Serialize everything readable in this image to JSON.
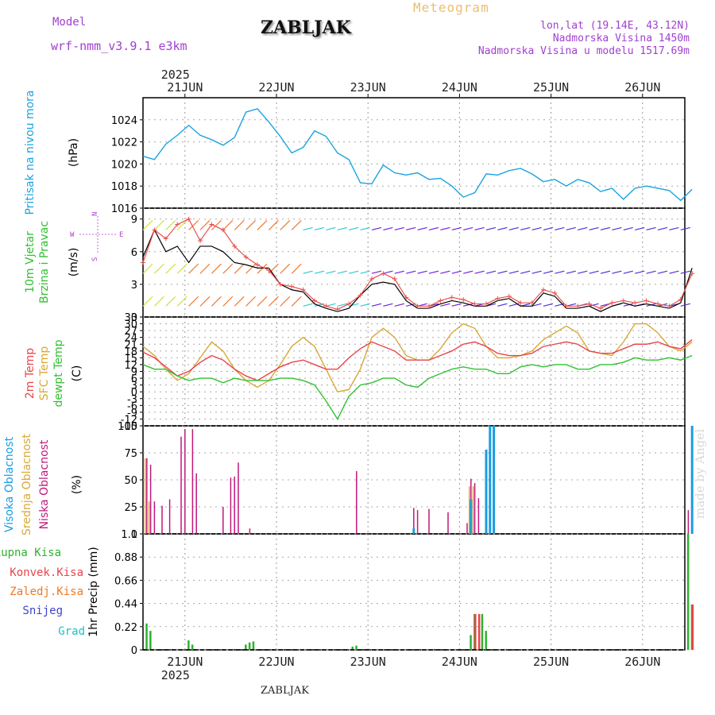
{
  "header": {
    "model_label": "Model",
    "model_name": "wrf-nmm_v3.9.1 e3km",
    "station": "ZABLJAK",
    "title": "Meteogram",
    "lonlat": "lon,lat (19.14E, 43.12N)",
    "elevation": "Nadmorska Visina 1450m",
    "model_elevation": "Nadmorska Visina u modelu 1517.69m",
    "credit": "made by Angel",
    "footer_station": "ZABLJAK"
  },
  "colors": {
    "pressure": "#1aa3e0",
    "t2m": "#e8454a",
    "sfc": "#d8a838",
    "dewpt": "#30c030",
    "high_cloud": "#1a9ce0",
    "mid_cloud": "#d8a838",
    "low_cloud": "#c0187c",
    "total_precip": "#30b030",
    "conv_precip": "#e8454a",
    "frozen": "#f07820",
    "snow": "#4040d0",
    "hail": "#20c0c0",
    "wind_label": "#30c030",
    "compass": "#b040d0"
  },
  "time_axis": {
    "year": "2025",
    "days": [
      "21JUN",
      "22JUN",
      "23JUN",
      "24JUN",
      "25JUN",
      "26JUN"
    ]
  },
  "chart_data": [
    {
      "type": "line",
      "title": "Pritisak na nivou mora",
      "ylabel": "(hPa)",
      "ylim": [
        1016,
        1026
      ],
      "ticks": [
        "1016",
        "1018",
        "1020",
        "1022",
        "1024"
      ],
      "x_hours": [
        0,
        3,
        6,
        9,
        12,
        15,
        18,
        21,
        24,
        27,
        30,
        33,
        36,
        39,
        42,
        45,
        48,
        51,
        54,
        57,
        60,
        63,
        66,
        69,
        72,
        75,
        78,
        81,
        84,
        87,
        90,
        93,
        96,
        99,
        102,
        105,
        108,
        111,
        114,
        117,
        120,
        123,
        126,
        129,
        132,
        135,
        138,
        141,
        144
      ],
      "series": [
        {
          "name": "pressure",
          "values": [
            1020.7,
            1020.4,
            1021.8,
            1022.6,
            1023.5,
            1022.6,
            1022.2,
            1021.7,
            1022.4,
            1024.7,
            1025.0,
            1023.8,
            1022.5,
            1021.0,
            1021.5,
            1023.0,
            1022.5,
            1021.0,
            1020.4,
            1018.3,
            1018.2,
            1019.9,
            1019.2,
            1019.0,
            1019.2,
            1018.6,
            1018.7,
            1018.0,
            1017.0,
            1017.4,
            1019.1,
            1019.0,
            1019.4,
            1019.6,
            1019.1,
            1018.4,
            1018.6,
            1018.0,
            1018.6,
            1018.3,
            1017.5,
            1017.8,
            1016.8,
            1017.8,
            1018.0,
            1017.8,
            1017.6,
            1016.7,
            1017.7
          ]
        }
      ]
    },
    {
      "type": "line",
      "title": "10m Vjetar Brzina i Pravac",
      "ylabel": "(m/s)",
      "ylim": [
        0,
        10
      ],
      "ticks": [
        "0",
        "3",
        "6",
        "9"
      ],
      "compass": {
        "n": "N",
        "s": "S",
        "w": "W",
        "e": "E"
      },
      "barb_levels": [
        1,
        4,
        8
      ],
      "x_hours": [
        0,
        3,
        6,
        9,
        12,
        15,
        18,
        21,
        24,
        27,
        30,
        33,
        36,
        39,
        42,
        45,
        48,
        51,
        54,
        57,
        60,
        63,
        66,
        69,
        72,
        75,
        78,
        81,
        84,
        87,
        90,
        93,
        96,
        99,
        102,
        105,
        108,
        111,
        114,
        117,
        120,
        123,
        126,
        129,
        132,
        135,
        138,
        141,
        144
      ],
      "series": [
        {
          "name": "speed",
          "values": [
            5.0,
            8.0,
            7.2,
            8.5,
            9.0,
            7.0,
            8.5,
            8.0,
            6.5,
            5.5,
            4.8,
            4.3,
            3.0,
            2.8,
            2.5,
            1.5,
            1.0,
            0.7,
            1.2,
            2.0,
            3.5,
            4.0,
            3.5,
            1.8,
            1.0,
            1.0,
            1.5,
            1.8,
            1.6,
            1.2,
            1.2,
            1.7,
            1.9,
            1.3,
            1.3,
            2.5,
            2.2,
            1.0,
            1.0,
            1.2,
            0.8,
            1.3,
            1.5,
            1.3,
            1.5,
            1.2,
            1.0,
            1.6,
            4.0
          ]
        },
        {
          "name": "gust",
          "values": [
            5.5,
            8.0,
            6.0,
            6.5,
            5.0,
            6.5,
            6.5,
            6.0,
            5.0,
            4.8,
            4.5,
            4.5,
            3.0,
            2.5,
            2.3,
            1.2,
            0.8,
            0.5,
            0.8,
            2.0,
            3.0,
            3.2,
            3.0,
            1.5,
            0.8,
            0.8,
            1.2,
            1.5,
            1.3,
            1.0,
            1.0,
            1.5,
            1.7,
            1.0,
            1.0,
            2.2,
            1.9,
            0.8,
            0.8,
            1.0,
            0.5,
            1.0,
            1.3,
            1.0,
            1.2,
            1.0,
            0.8,
            1.3,
            4.5
          ]
        }
      ]
    },
    {
      "type": "line",
      "title": "2m Temp / SFC Temp / dewpt Temp",
      "ylabel": "(C)",
      "ylim": [
        -15,
        33
      ],
      "ticks": [
        "-15",
        "-12",
        "-9",
        "-6",
        "-3",
        "0",
        "3",
        "6",
        "9",
        "12",
        "15",
        "18",
        "21",
        "24",
        "27",
        "30",
        "33"
      ],
      "x_hours": [
        0,
        3,
        6,
        9,
        12,
        15,
        18,
        21,
        24,
        27,
        30,
        33,
        36,
        39,
        42,
        45,
        48,
        51,
        54,
        57,
        60,
        63,
        66,
        69,
        72,
        75,
        78,
        81,
        84,
        87,
        90,
        93,
        96,
        99,
        102,
        105,
        108,
        111,
        114,
        117,
        120,
        123,
        126,
        129,
        132,
        135,
        138,
        141,
        144
      ],
      "series": [
        {
          "name": "2m Temp",
          "values": [
            17.5,
            15,
            11,
            7,
            9,
            13,
            16,
            14,
            10,
            7,
            5,
            8,
            11,
            13,
            14,
            12,
            10,
            10,
            15,
            19,
            22,
            20,
            18,
            14,
            14,
            14,
            16,
            18,
            21,
            22,
            20,
            17,
            16,
            16,
            17,
            20,
            21,
            22,
            21,
            18,
            17,
            17,
            19,
            21,
            21,
            22,
            20,
            19,
            23
          ]
        },
        {
          "name": "SFC Temp",
          "values": [
            20,
            16,
            10,
            5,
            8,
            15,
            22,
            18,
            10,
            5,
            2,
            5,
            12,
            20,
            24,
            20,
            10,
            0,
            1,
            10,
            24,
            28,
            24,
            16,
            14,
            14,
            19,
            26,
            30,
            28,
            20,
            15,
            15,
            16,
            18,
            23,
            26,
            29,
            26,
            18,
            17,
            16,
            22,
            30,
            30,
            26,
            20,
            18,
            22
          ]
        },
        {
          "name": "dewpt Temp",
          "values": [
            12,
            10,
            10,
            7,
            5,
            6,
            6,
            4,
            6,
            5,
            5,
            5,
            6,
            6,
            5,
            3,
            -4,
            -12,
            -2,
            3,
            4,
            6,
            6,
            3,
            2,
            6,
            8,
            10,
            11,
            10,
            10,
            8,
            8,
            11,
            12,
            11,
            12,
            12,
            10,
            10,
            12,
            12,
            13,
            15,
            14,
            14,
            15,
            14,
            16
          ]
        }
      ]
    },
    {
      "type": "bar",
      "title": "Visoka / Srednja / Niska Oblacnost",
      "ylabel": "(%)",
      "ylim": [
        0,
        100
      ],
      "ticks": [
        "0",
        "25",
        "50",
        "75",
        "100"
      ],
      "series": [
        {
          "name": "Niska Oblacnost",
          "hours": [
            1,
            2,
            3,
            5,
            7,
            10,
            11,
            13,
            14,
            21,
            23,
            24,
            25,
            28,
            56,
            71,
            72,
            75,
            80,
            85,
            86,
            87,
            88,
            91,
            92,
            143
          ],
          "values": [
            70,
            64,
            30,
            26,
            32,
            90,
            97,
            97,
            56,
            25,
            52,
            53,
            66,
            5,
            58,
            24,
            22,
            23,
            20,
            10,
            51,
            47,
            33,
            100,
            100,
            22
          ]
        },
        {
          "name": "Srednja Oblacnost",
          "hours": [
            1,
            2,
            86,
            87
          ],
          "values": [
            70,
            30,
            44,
            44
          ]
        },
        {
          "name": "Visoka Oblacnost",
          "hours": [
            71,
            86,
            90,
            91,
            92,
            144
          ],
          "values": [
            5,
            32,
            78,
            100,
            100,
            100
          ]
        }
      ]
    },
    {
      "type": "bar",
      "title": "1hr Precip",
      "ylabel": "(mm)",
      "ylim": [
        0,
        1.1
      ],
      "ticks": [
        "0",
        "0.22",
        "0.44",
        "0.66",
        "0.88",
        "1.1"
      ],
      "series": [
        {
          "name": "Ukupna Kisa",
          "hours": [
            1,
            2,
            12,
            13,
            27,
            28,
            29,
            55,
            56,
            86,
            87,
            89,
            90,
            143,
            144
          ],
          "values": [
            0.25,
            0.18,
            0.09,
            0.05,
            0.05,
            0.07,
            0.08,
            0.03,
            0.04,
            0.14,
            0.34,
            0.34,
            0.18,
            1.1,
            0.43
          ]
        },
        {
          "name": "Konvek.Kisa",
          "hours": [
            87,
            88,
            144
          ],
          "values": [
            0.34,
            0.34,
            0.43
          ]
        }
      ]
    }
  ],
  "legends": {
    "wind": [
      "10m Vjetar",
      "Brzina i Pravac"
    ],
    "temp": [
      "2m Temp",
      "SFC Temp",
      "dewpt Temp"
    ],
    "cloud": [
      "Visoka Oblacnost",
      "Srednja Oblacnost",
      "Niska Oblacnost"
    ],
    "precip": [
      "Ukupna Kisa",
      "Konvek.Kisa",
      "Zaledj.Kisa",
      "Snijeg",
      "Grad"
    ],
    "precip_unit": "1hr Precip (mm)"
  }
}
